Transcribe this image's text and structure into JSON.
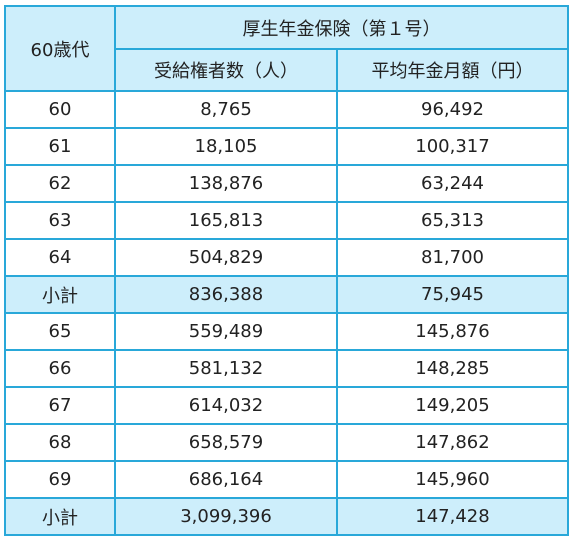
{
  "table": {
    "age_header": "60歳代",
    "group_header": "厚生年金保険（第１号）",
    "col_recipients": "受給権者数（人）",
    "col_avg_pension": "平均年金月額（円）",
    "rows": [
      {
        "age": "60",
        "recipients": "8,765",
        "avg": "96,492",
        "subtotal": false
      },
      {
        "age": "61",
        "recipients": "18,105",
        "avg": "100,317",
        "subtotal": false
      },
      {
        "age": "62",
        "recipients": "138,876",
        "avg": "63,244",
        "subtotal": false
      },
      {
        "age": "63",
        "recipients": "165,813",
        "avg": "65,313",
        "subtotal": false
      },
      {
        "age": "64",
        "recipients": "504,829",
        "avg": "81,700",
        "subtotal": false
      },
      {
        "age": "小計",
        "recipients": "836,388",
        "avg": "75,945",
        "subtotal": true
      },
      {
        "age": "65",
        "recipients": "559,489",
        "avg": "145,876",
        "subtotal": false
      },
      {
        "age": "66",
        "recipients": "581,132",
        "avg": "148,285",
        "subtotal": false
      },
      {
        "age": "67",
        "recipients": "614,032",
        "avg": "149,205",
        "subtotal": false
      },
      {
        "age": "68",
        "recipients": "658,579",
        "avg": "147,862",
        "subtotal": false
      },
      {
        "age": "69",
        "recipients": "686,164",
        "avg": "145,960",
        "subtotal": false
      },
      {
        "age": "小計",
        "recipients": "3,099,396",
        "avg": "147,428",
        "subtotal": true
      }
    ]
  }
}
